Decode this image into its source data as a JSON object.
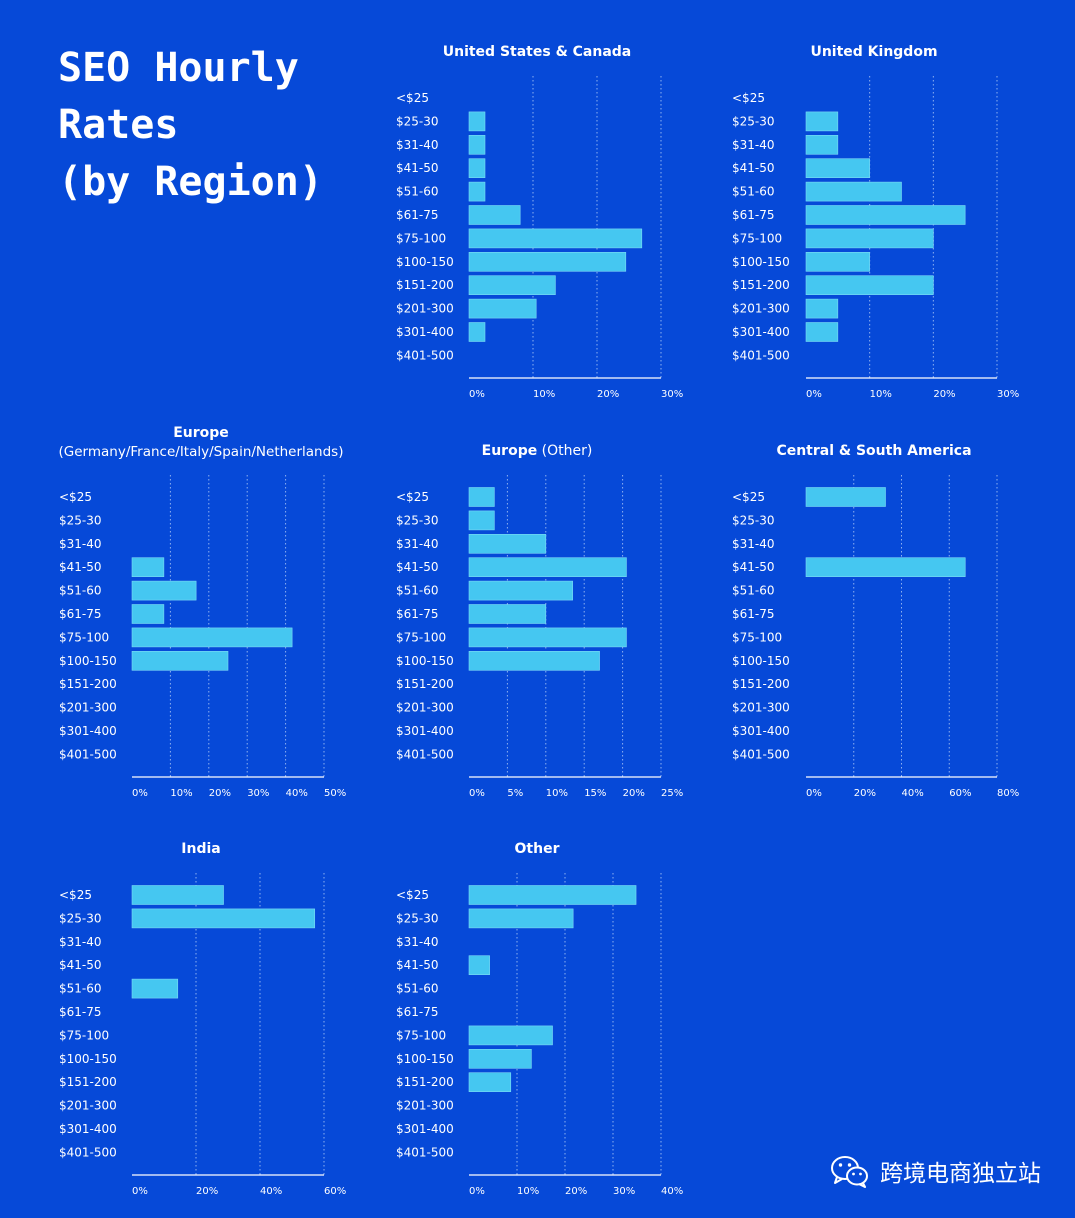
{
  "page": {
    "title_lines": [
      "SEO Hourly",
      "Rates",
      "(by Region)"
    ],
    "watermark": "跨境电商独立站"
  },
  "colors": {
    "background": "#0649d8",
    "bar": "#45c7f1",
    "bar_edge": "#7bdaf6",
    "grid": "#8fb1f0",
    "axis": "#ffffff"
  },
  "chart_data": [
    {
      "type": "bar",
      "orientation": "horizontal",
      "title": "United States & Canada",
      "subtitle": "",
      "categories": [
        "<$25",
        "$25-30",
        "$31-40",
        "$41-50",
        "$51-60",
        "$61-75",
        "$75-100",
        "$100-150",
        "$151-200",
        "$201-300",
        "$301-400",
        "$401-500"
      ],
      "values": [
        0,
        2.5,
        2.5,
        2.5,
        2.5,
        8,
        27,
        24.5,
        13.5,
        10.5,
        2.5,
        0
      ],
      "xlim": [
        0,
        30
      ],
      "xticks": [
        "0%",
        "10%",
        "20%",
        "30%"
      ],
      "grid": true
    },
    {
      "type": "bar",
      "orientation": "horizontal",
      "title": "United Kingdom",
      "subtitle": "",
      "categories": [
        "<$25",
        "$25-30",
        "$31-40",
        "$41-50",
        "$51-60",
        "$61-75",
        "$75-100",
        "$100-150",
        "$151-200",
        "$201-300",
        "$301-400",
        "$401-500"
      ],
      "values": [
        0,
        5,
        5,
        10,
        15,
        25,
        20,
        10,
        20,
        5,
        5,
        0
      ],
      "xlim": [
        0,
        30
      ],
      "xticks": [
        "0%",
        "10%",
        "20%",
        "30%"
      ],
      "grid": true
    },
    {
      "type": "bar",
      "orientation": "horizontal",
      "title": "Europe",
      "subtitle": "(Germany/France/Italy/Spain/Netherlands)",
      "categories": [
        "<$25",
        "$25-30",
        "$31-40",
        "$41-50",
        "$51-60",
        "$61-75",
        "$75-100",
        "$100-150",
        "$151-200",
        "$201-300",
        "$301-400",
        "$401-500"
      ],
      "values": [
        0,
        0,
        0,
        8.3,
        16.7,
        8.3,
        41.7,
        25,
        0,
        0,
        0,
        0
      ],
      "xlim": [
        0,
        50
      ],
      "xticks": [
        "0%",
        "10%",
        "20%",
        "30%",
        "40%",
        "50%"
      ],
      "grid": true
    },
    {
      "type": "bar",
      "orientation": "horizontal",
      "title": "Europe",
      "title_suffix": " (Other)",
      "subtitle": "",
      "categories": [
        "<$25",
        "$25-30",
        "$31-40",
        "$41-50",
        "$51-60",
        "$61-75",
        "$75-100",
        "$100-150",
        "$151-200",
        "$201-300",
        "$301-400",
        "$401-500"
      ],
      "values": [
        3.3,
        3.3,
        10,
        20.5,
        13.5,
        10,
        20.5,
        17,
        0,
        0,
        0,
        0
      ],
      "xlim": [
        0,
        25
      ],
      "xticks": [
        "0%",
        "5%",
        "10%",
        "15%",
        "20%",
        "25%"
      ],
      "grid": true
    },
    {
      "type": "bar",
      "orientation": "horizontal",
      "title": "Central & South America",
      "subtitle": "",
      "categories": [
        "<$25",
        "$25-30",
        "$31-40",
        "$41-50",
        "$51-60",
        "$61-75",
        "$75-100",
        "$100-150",
        "$151-200",
        "$201-300",
        "$301-400",
        "$401-500"
      ],
      "values": [
        33.3,
        0,
        0,
        66.7,
        0,
        0,
        0,
        0,
        0,
        0,
        0,
        0
      ],
      "xlim": [
        0,
        80
      ],
      "xticks": [
        "0%",
        "20%",
        "40%",
        "60%",
        "80%"
      ],
      "grid": true
    },
    {
      "type": "bar",
      "orientation": "horizontal",
      "title": "India",
      "subtitle": "",
      "categories": [
        "<$25",
        "$25-30",
        "$31-40",
        "$41-50",
        "$51-60",
        "$61-75",
        "$75-100",
        "$100-150",
        "$151-200",
        "$201-300",
        "$301-400",
        "$401-500"
      ],
      "values": [
        28.6,
        57.1,
        0,
        0,
        14.3,
        0,
        0,
        0,
        0,
        0,
        0,
        0
      ],
      "xlim": [
        0,
        60
      ],
      "xticks": [
        "0%",
        "20%",
        "40%",
        "60%"
      ],
      "grid": true
    },
    {
      "type": "bar",
      "orientation": "horizontal",
      "title": "Other",
      "subtitle": "",
      "categories": [
        "<$25",
        "$25-30",
        "$31-40",
        "$41-50",
        "$51-60",
        "$61-75",
        "$75-100",
        "$100-150",
        "$151-200",
        "$201-300",
        "$301-400",
        "$401-500"
      ],
      "values": [
        34.8,
        21.7,
        0,
        4.3,
        0,
        0,
        17.4,
        13,
        8.7,
        0,
        0,
        0
      ],
      "xlim": [
        0,
        40
      ],
      "xticks": [
        "0%",
        "10%",
        "20%",
        "30%",
        "40%"
      ],
      "grid": true
    }
  ]
}
